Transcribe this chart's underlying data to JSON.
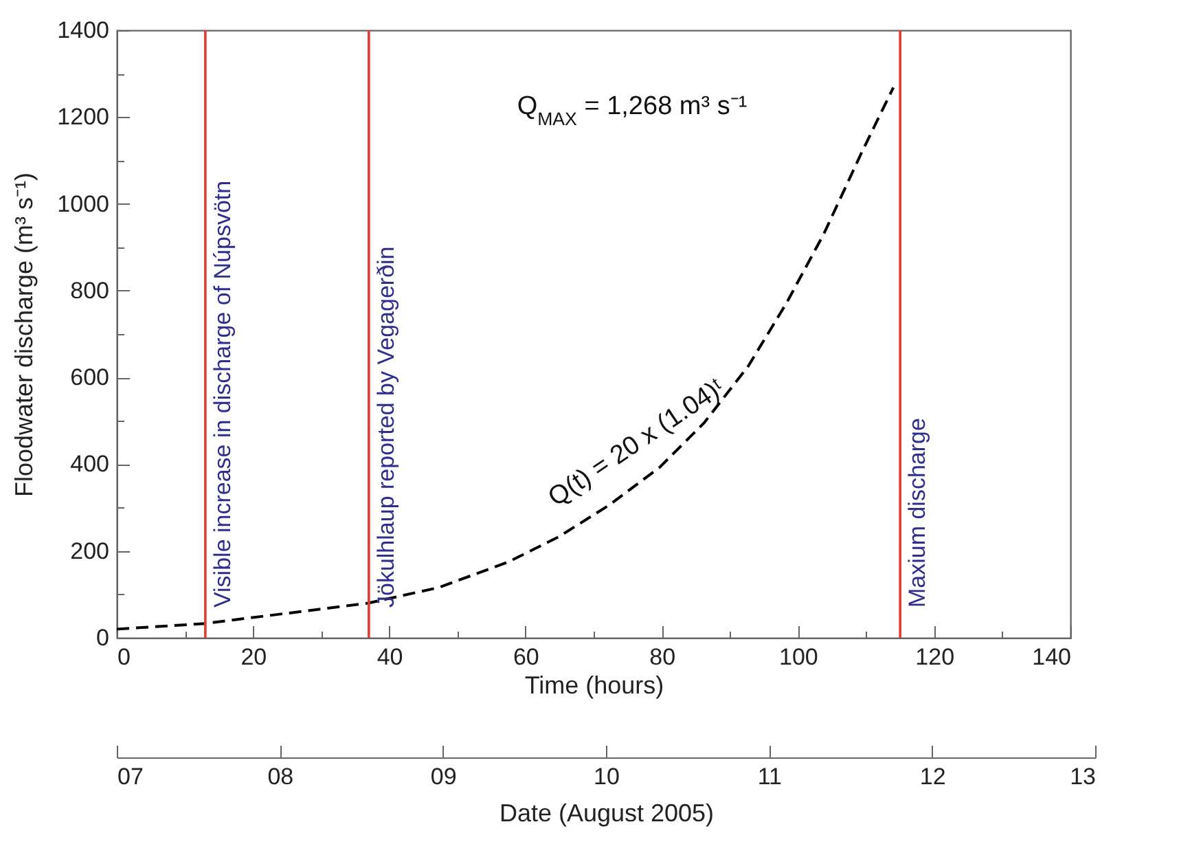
{
  "chart_data": {
    "type": "line",
    "xlabel": "Time (hours)",
    "ylabel": "Floodwater discharge (m³ s⁻¹)",
    "x2label": "Date (August 2005)",
    "series": [
      {
        "color": "#000000",
        "x": [
          0,
          13,
          36.9,
          47.3,
          57.5,
          64.9,
          72.3,
          79.7,
          86.2,
          92.7,
          98.3,
          103.8,
          109.4,
          114
        ],
        "values": [
          20,
          33,
          80,
          116,
          175,
          233,
          306,
          393,
          495,
          626,
          771,
          931,
          1120,
          1268
        ]
      }
    ],
    "xlim": [
      0,
      140
    ],
    "xticks": [
      0,
      {
        "value": 10,
        "label": null
      },
      20,
      {
        "value": 30,
        "label": null
      },
      40,
      {
        "value": 50,
        "label": null
      },
      60,
      {
        "value": 70,
        "label": null
      },
      80,
      {
        "value": 90,
        "label": null
      },
      100,
      {
        "value": 110,
        "label": null
      },
      120,
      {
        "value": 130,
        "label": null
      },
      140
    ],
    "ylim": [
      0,
      1400
    ],
    "yticks": [
      0,
      {
        "value": 100,
        "label": null
      },
      200,
      {
        "value": 300,
        "label": null
      },
      400,
      {
        "value": 500,
        "label": null
      },
      600,
      {
        "value": 700,
        "label": null
      },
      800,
      {
        "value": 900,
        "label": null
      },
      1000,
      {
        "value": 1100,
        "label": null
      },
      1200,
      {
        "value": 1300,
        "label": null
      },
      1400
    ],
    "x2lim": [
      7,
      13
    ],
    "x2ticks": [
      {
        "value": 7,
        "label": "07"
      },
      {
        "value": 8,
        "label": "08"
      },
      {
        "value": 9,
        "label": "09"
      },
      10,
      11,
      12,
      13
    ],
    "ref_lines": [
      {
        "axis": "x",
        "value": 13,
        "label": "Visible increase in discharge of Núpsvötn",
        "color": "#e03c31"
      },
      {
        "axis": "x",
        "value": 37,
        "label": "Jökulhlaup reported by Vegagerðin",
        "color": "#e03c31"
      },
      {
        "axis": "x",
        "value": 115,
        "label": "Maxium discharge",
        "color": "#e03c31"
      }
    ],
    "annotations": [
      "Q$_{MAX}$ = 1,268 m³ s⁻¹",
      "Q(t) = 20 x (1.04)ᵗ"
    ],
    "line_style": "dashed",
    "marker": "none",
    "grid": false,
    "legend": false
  }
}
